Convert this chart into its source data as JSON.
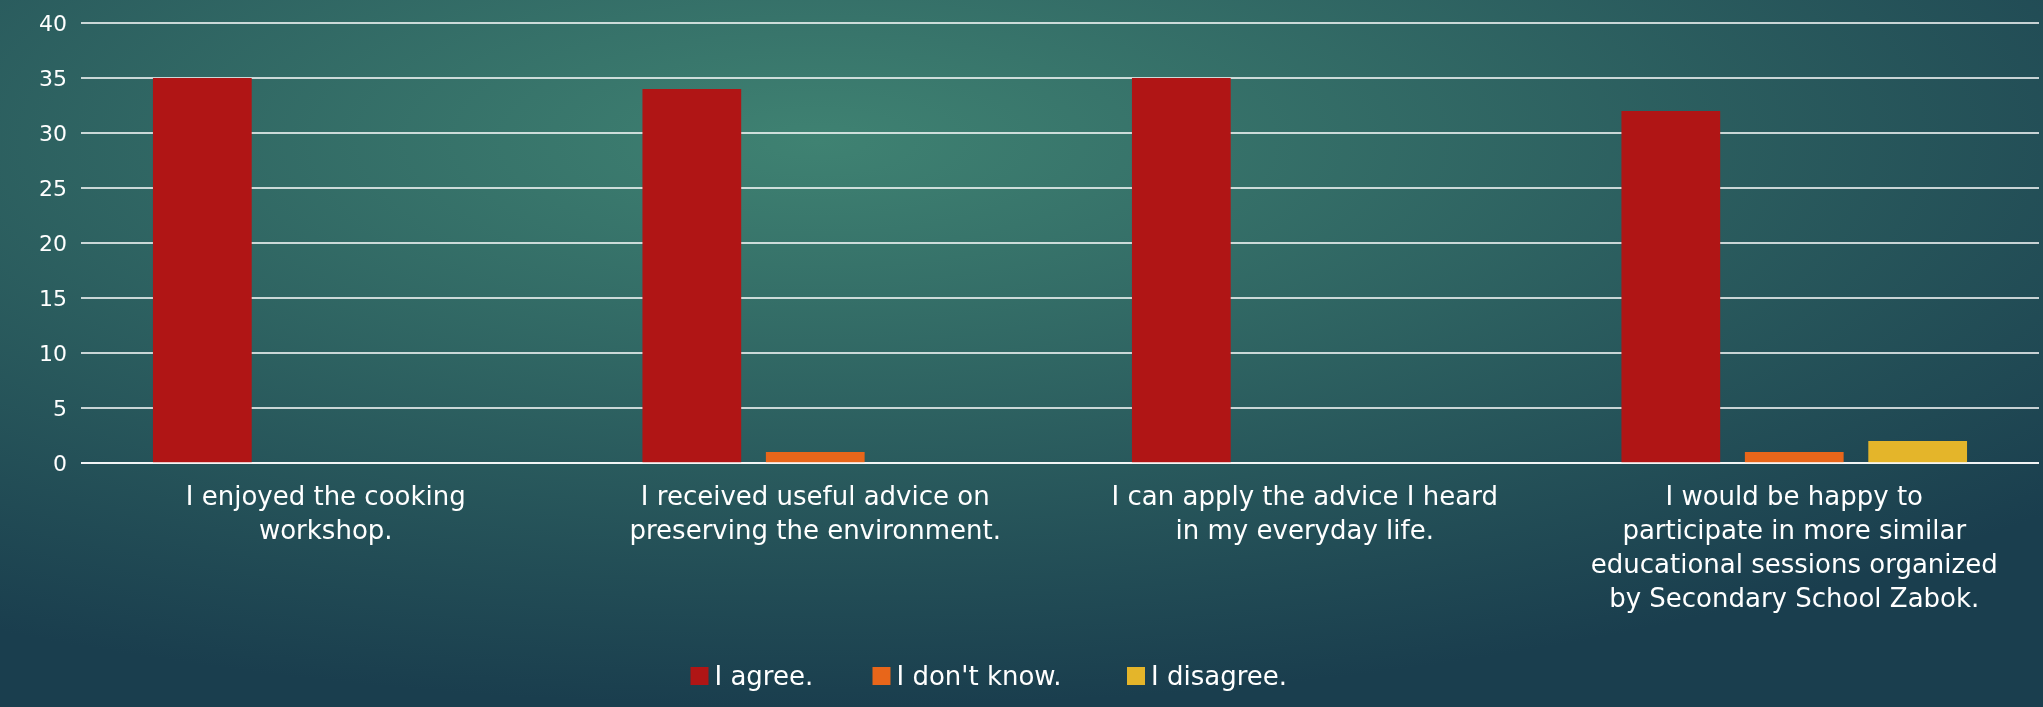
{
  "chart_data": {
    "type": "bar",
    "categories": [
      "I enjoyed the cooking workshop.",
      "I received useful advice on preserving the environment.",
      "I can apply the advice I heard in my everyday life.",
      "I would be happy to participate in more similar educational sessions organized by Secondary School Zabok."
    ],
    "series": [
      {
        "name": "I agree.",
        "color": "#b01515",
        "values": [
          35,
          34,
          35,
          32
        ]
      },
      {
        "name": "I don't know.",
        "color": "#e8661a",
        "values": [
          0,
          1,
          0,
          1
        ]
      },
      {
        "name": "I disagree.",
        "color": "#e4b52a",
        "values": [
          0,
          0,
          0,
          2
        ]
      }
    ],
    "ylim": [
      0,
      40
    ],
    "yticks": [
      0,
      5,
      10,
      15,
      20,
      25,
      30,
      35,
      40
    ],
    "grid": "y",
    "legend": "bottom"
  }
}
